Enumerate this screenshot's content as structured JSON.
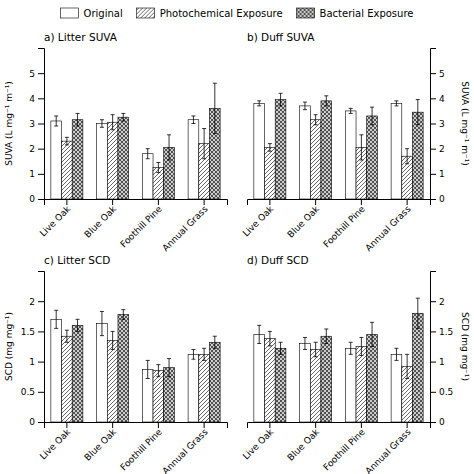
{
  "chart_data": [
    {
      "type": "bar",
      "title": "a) Litter SUVA",
      "ylabel": "SUVA (L mg⁻¹ m⁻¹)",
      "categories": [
        "Live Oak",
        "Blue Oak",
        "Foothill Pine",
        "Annual Grass"
      ],
      "ylim": [
        0,
        6
      ],
      "yticks": [
        0,
        1,
        2,
        3,
        4,
        5
      ],
      "legend": "top",
      "series": [
        {
          "name": "Original",
          "color": "#ffffff",
          "values": [
            3.1,
            3.0,
            1.8,
            3.15
          ],
          "errors": [
            0.2,
            0.15,
            0.2,
            0.15
          ]
        },
        {
          "name": "Photochemical Exposure",
          "color": "#ffffff",
          "values": [
            2.3,
            3.05,
            1.25,
            2.2
          ],
          "errors": [
            0.15,
            0.3,
            0.2,
            0.6
          ]
        },
        {
          "name": "Bacterial Exposure",
          "color": "#cccccc",
          "values": [
            3.15,
            3.25,
            2.05,
            3.6
          ],
          "errors": [
            0.25,
            0.15,
            0.5,
            1.0
          ]
        }
      ]
    },
    {
      "type": "bar",
      "title": "b) Duff SUVA",
      "ylabel": "SUVA (L mg⁻¹ m⁻¹)",
      "categories": [
        "Live Oak",
        "Blue Oak",
        "Foothill Pine",
        "Annual Grass"
      ],
      "ylim": [
        0,
        6
      ],
      "yticks": [
        0,
        1,
        2,
        3,
        4,
        5
      ],
      "legend": "top",
      "series": [
        {
          "name": "Original",
          "color": "#ffffff",
          "values": [
            3.8,
            3.7,
            3.5,
            3.8
          ],
          "errors": [
            0.1,
            0.15,
            0.1,
            0.1
          ]
        },
        {
          "name": "Photochemical Exposure",
          "color": "#ffffff",
          "values": [
            2.05,
            3.15,
            2.05,
            1.7
          ],
          "errors": [
            0.15,
            0.2,
            0.5,
            0.3
          ]
        },
        {
          "name": "Bacterial Exposure",
          "color": "#cccccc",
          "values": [
            3.95,
            3.9,
            3.3,
            3.45
          ],
          "errors": [
            0.25,
            0.2,
            0.35,
            0.5
          ]
        }
      ]
    },
    {
      "type": "bar",
      "title": "c) Litter SCD",
      "ylabel": "SCD (mg mg⁻¹)",
      "categories": [
        "Live Oak",
        "Blue Oak",
        "Foothill Pine",
        "Annual Grass"
      ],
      "ylim": [
        0,
        2.5
      ],
      "yticks": [
        0,
        0.5,
        1,
        1.5,
        2
      ],
      "legend": "top",
      "series": [
        {
          "name": "Original",
          "color": "#ffffff",
          "values": [
            1.7,
            1.63,
            0.87,
            1.12
          ],
          "errors": [
            0.15,
            0.2,
            0.15,
            0.08
          ]
        },
        {
          "name": "Photochemical Exposure",
          "color": "#ffffff",
          "values": [
            1.42,
            1.35,
            0.85,
            1.12
          ],
          "errors": [
            0.1,
            0.15,
            0.1,
            0.1
          ]
        },
        {
          "name": "Bacterial Exposure",
          "color": "#cccccc",
          "values": [
            1.6,
            1.78,
            0.9,
            1.32
          ],
          "errors": [
            0.1,
            0.08,
            0.15,
            0.1
          ]
        }
      ]
    },
    {
      "type": "bar",
      "title": "d) Duff SCD",
      "ylabel": "SCD (mg mg⁻¹)",
      "categories": [
        "Live Oak",
        "Blue Oak",
        "Foothill Pine",
        "Annual Grass"
      ],
      "ylim": [
        0,
        2.5
      ],
      "yticks": [
        0,
        0.5,
        1,
        1.5,
        2
      ],
      "legend": "top",
      "series": [
        {
          "name": "Original",
          "color": "#ffffff",
          "values": [
            1.45,
            1.3,
            1.22,
            1.12
          ],
          "errors": [
            0.15,
            0.1,
            0.1,
            0.1
          ]
        },
        {
          "name": "Photochemical Exposure",
          "color": "#ffffff",
          "values": [
            1.38,
            1.2,
            1.25,
            0.92
          ],
          "errors": [
            0.12,
            0.12,
            0.15,
            0.2
          ]
        },
        {
          "name": "Bacterial Exposure",
          "color": "#cccccc",
          "values": [
            1.22,
            1.42,
            1.45,
            1.8
          ],
          "errors": [
            0.1,
            0.12,
            0.2,
            0.25
          ]
        }
      ]
    }
  ]
}
